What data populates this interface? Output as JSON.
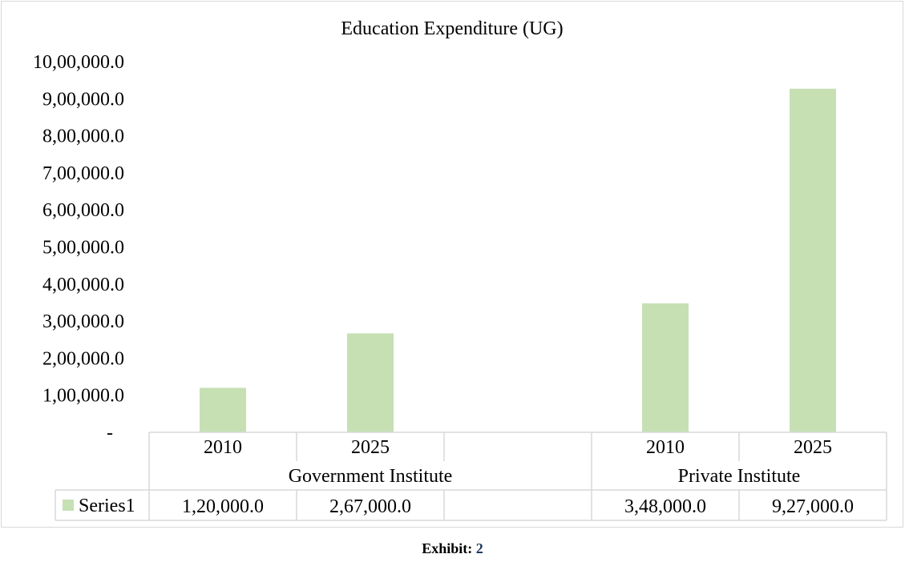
{
  "chart_data": {
    "type": "bar",
    "title": "Education Expenditure (UG)",
    "groups": [
      {
        "label": "Government Institute",
        "categories": [
          "2010",
          "2025",
          ""
        ]
      },
      {
        "label": "Private Institute",
        "categories": [
          "2010",
          "2025"
        ]
      }
    ],
    "categories": [
      "2010",
      "2025",
      "",
      "2010",
      "2025"
    ],
    "series": [
      {
        "name": "Series1",
        "values": [
          120000,
          267000,
          null,
          348000,
          927000
        ],
        "value_labels": [
          "1,20,000.0",
          "2,67,000.0",
          "",
          "3,48,000.0",
          "9,27,000.0"
        ],
        "color": "#c6e0b4"
      }
    ],
    "ylim": [
      0,
      1000000
    ],
    "yticks": [
      0,
      100000,
      200000,
      300000,
      400000,
      500000,
      600000,
      700000,
      800000,
      900000,
      1000000
    ],
    "ytick_labels": [
      "-",
      "1,00,000.0",
      "2,00,000.0",
      "3,00,000.0",
      "4,00,000.0",
      "5,00,000.0",
      "6,00,000.0",
      "7,00,000.0",
      "8,00,000.0",
      "9,00,000.0",
      "10,00,000.0"
    ],
    "grid": false,
    "legend": "data-table",
    "data_table": true
  },
  "caption": {
    "label": "Exhibit:",
    "number": "2"
  }
}
